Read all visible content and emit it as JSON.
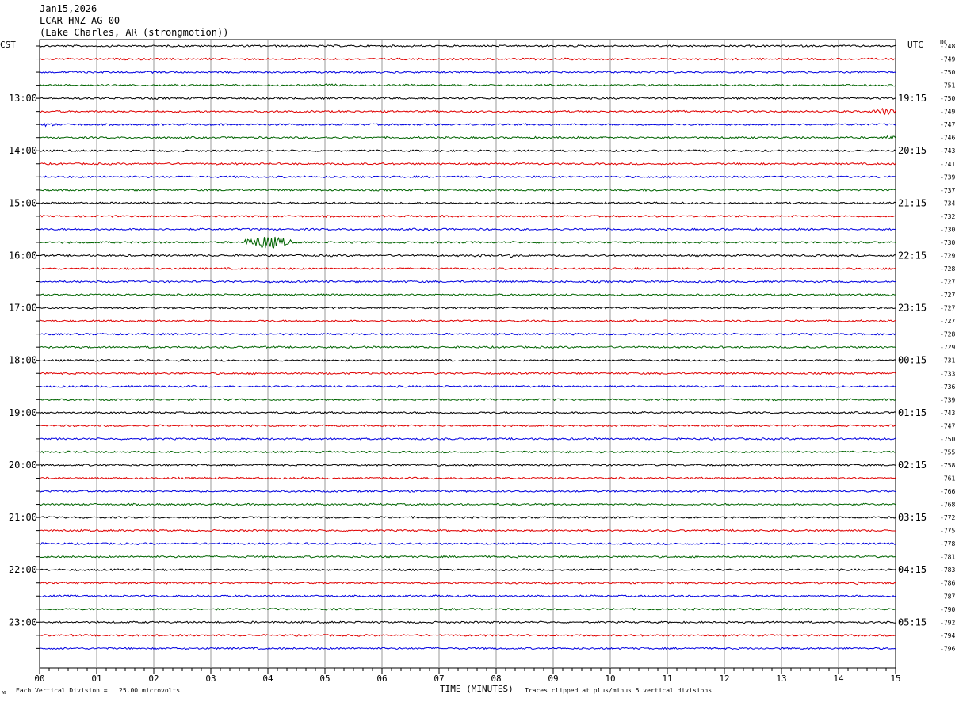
{
  "header": {
    "date": "Jan15,2026",
    "station": "LCAR HNZ AG 00",
    "location": "(Lake Charles, AR (strongmotion))"
  },
  "left_zone": "CST",
  "right_zone": "UTC",
  "dc_label": "DC",
  "footer": {
    "scale_note": "Each Vertical Division =   25.00 microvolts",
    "corner_mark": "ᴍ",
    "time_axis_label": "TIME (MINUTES)",
    "clip_note": "Traces clipped at plus/minus 5 vertical divisions"
  },
  "colors": {
    "trace_cycle": [
      "#000000",
      "#e00000",
      "#0000e0",
      "#006400"
    ],
    "grid": "#999999"
  },
  "chart_data": {
    "type": "line",
    "title": "LCAR HNZ AG 00",
    "xlabel": "TIME (MINUTES)",
    "x_ticks": [
      "00",
      "01",
      "02",
      "03",
      "04",
      "05",
      "06",
      "07",
      "08",
      "09",
      "10",
      "11",
      "12",
      "13",
      "14",
      "15"
    ],
    "xlim": [
      0,
      15
    ],
    "hour_labels_left": [
      "13:00",
      "14:00",
      "15:00",
      "16:00",
      "17:00",
      "18:00",
      "19:00",
      "20:00",
      "21:00",
      "22:00",
      "23:00"
    ],
    "hour_labels_right": [
      "19:15",
      "20:15",
      "21:15",
      "22:15",
      "23:15",
      "00:15",
      "01:15",
      "02:15",
      "03:15",
      "04:15",
      "05:15"
    ],
    "dc_offsets": [
      "-748",
      "-749",
      "-750",
      "-751",
      "-750",
      "-749",
      "-747",
      "-746",
      "-743",
      "-741",
      "-739",
      "-737",
      "-734",
      "-732",
      "-730",
      "-730",
      "-729",
      "-728",
      "-727",
      "-727",
      "-727",
      "-727",
      "-728",
      "-729",
      "-731",
      "-733",
      "-736",
      "-739",
      "-743",
      "-747",
      "-750",
      "-755",
      "-758",
      "-761",
      "-766",
      "-768",
      "-772",
      "-775",
      "-778",
      "-781",
      "-783",
      "-786",
      "-787",
      "-790",
      "-792",
      "-794",
      "-796"
    ],
    "events": [
      {
        "trace": 3,
        "start_min": 4.8,
        "end_min": 5.4,
        "amplitude": 2
      },
      {
        "trace": 5,
        "start_min": 14.6,
        "end_min": 15.0,
        "amplitude": 5
      },
      {
        "trace": 6,
        "start_min": 0.0,
        "end_min": 0.3,
        "amplitude": 3
      },
      {
        "trace": 7,
        "start_min": 14.8,
        "end_min": 15.0,
        "amplitude": 4
      },
      {
        "trace": 11,
        "start_min": 10.4,
        "end_min": 11.0,
        "amplitude": 2
      },
      {
        "trace": 15,
        "start_min": 3.6,
        "end_min": 4.4,
        "amplitude": 9
      },
      {
        "trace": 16,
        "start_min": 7.5,
        "end_min": 7.9,
        "amplitude": 2
      },
      {
        "trace": 16,
        "start_min": 8.2,
        "end_min": 8.3,
        "amplitude": 4
      },
      {
        "trace": 41,
        "start_min": 14.1,
        "end_min": 14.6,
        "amplitude": 2
      }
    ]
  }
}
